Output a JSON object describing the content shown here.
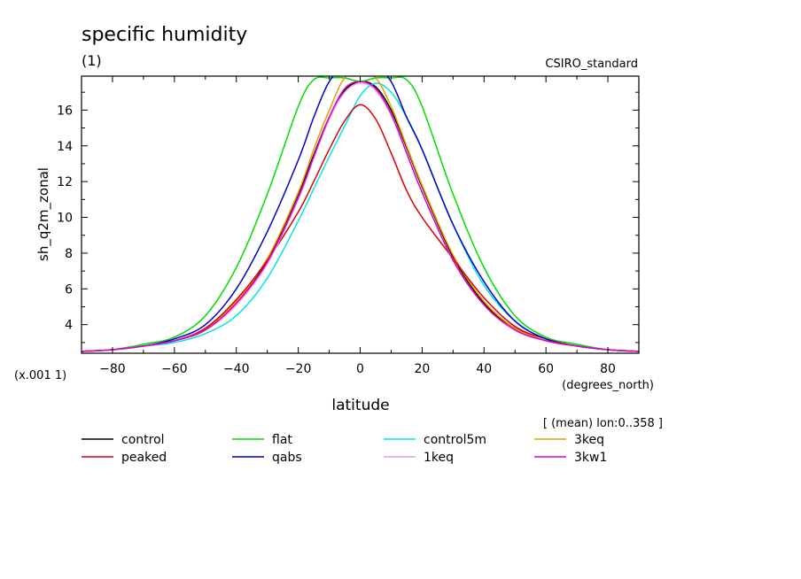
{
  "chart_data": {
    "type": "line",
    "title": "specific humidity",
    "subtitle": "(1)",
    "dataset_label": "CSIRO_standard",
    "xlabel": "latitude",
    "x_units": "(degrees_north)",
    "ylabel": "sh_q2m_zonal",
    "y_scale_note": "(x.001 1)",
    "averaging_note": "[ (mean) lon:0..358 ]",
    "xlim": [
      -90,
      90
    ],
    "ylim": [
      2.4,
      17.9
    ],
    "x_ticks": [
      -80,
      -60,
      -40,
      -20,
      0,
      20,
      40,
      60,
      80
    ],
    "y_ticks": [
      4,
      6,
      8,
      10,
      12,
      14,
      16
    ],
    "x_tick_labels": [
      "−80",
      "−60",
      "−40",
      "−20",
      "0",
      "20",
      "40",
      "60",
      "80"
    ],
    "y_tick_labels": [
      "4",
      "6",
      "8",
      "10",
      "12",
      "14",
      "16"
    ],
    "x": [
      -90,
      -80,
      -70,
      -60,
      -50,
      -40,
      -30,
      -20,
      -15,
      -10,
      -5,
      0,
      5,
      10,
      15,
      20,
      30,
      40,
      50,
      60,
      70,
      80,
      90
    ],
    "series": [
      {
        "name": "control",
        "color": "#000000",
        "values": [
          2.5,
          2.6,
          2.8,
          3.1,
          3.7,
          5.2,
          7.6,
          11.3,
          13.5,
          15.6,
          17.1,
          17.6,
          17.3,
          16.0,
          13.9,
          11.7,
          7.8,
          5.2,
          3.8,
          3.1,
          2.8,
          2.6,
          2.5
        ]
      },
      {
        "name": "flat",
        "color": "#00dd00",
        "values": [
          2.5,
          2.6,
          2.9,
          3.3,
          4.5,
          7.2,
          11.3,
          16.2,
          17.7,
          17.8,
          17.8,
          17.6,
          17.8,
          17.8,
          17.7,
          16.2,
          11.3,
          7.2,
          4.5,
          3.3,
          2.9,
          2.6,
          2.5
        ]
      },
      {
        "name": "control5m",
        "color": "#00e5e5",
        "values": [
          2.5,
          2.6,
          2.8,
          3.0,
          3.5,
          4.5,
          6.6,
          9.8,
          11.6,
          13.4,
          15.1,
          16.8,
          17.5,
          17.0,
          15.6,
          13.8,
          9.6,
          6.2,
          4.2,
          3.2,
          2.8,
          2.6,
          2.5
        ]
      },
      {
        "name": "3keq",
        "color": "#e5a000",
        "values": [
          2.5,
          2.6,
          2.8,
          3.1,
          3.8,
          5.3,
          7.7,
          11.4,
          13.8,
          16.0,
          17.8,
          18.0,
          17.8,
          16.2,
          14.0,
          11.8,
          7.9,
          5.3,
          3.8,
          3.1,
          2.8,
          2.6,
          2.5
        ]
      },
      {
        "name": "peaked",
        "color": "#dd0000",
        "values": [
          2.5,
          2.6,
          2.8,
          3.1,
          3.8,
          5.4,
          7.6,
          10.3,
          12.0,
          13.8,
          15.4,
          16.3,
          15.5,
          13.6,
          11.5,
          10.0,
          7.7,
          5.5,
          3.9,
          3.2,
          2.8,
          2.6,
          2.5
        ]
      },
      {
        "name": "qabs",
        "color": "#0000cc",
        "values": [
          2.5,
          2.6,
          2.8,
          3.2,
          4.0,
          6.0,
          9.2,
          13.2,
          15.6,
          17.6,
          18.4,
          18.5,
          18.4,
          17.6,
          15.6,
          13.8,
          9.6,
          6.4,
          4.2,
          3.2,
          2.8,
          2.6,
          2.5
        ]
      },
      {
        "name": "1keq",
        "color": "#e8a0e8",
        "values": [
          2.5,
          2.6,
          2.8,
          3.1,
          3.7,
          5.1,
          7.4,
          11.0,
          13.3,
          15.5,
          17.0,
          17.5,
          17.1,
          15.7,
          13.6,
          11.4,
          7.6,
          5.1,
          3.7,
          3.1,
          2.8,
          2.6,
          2.5
        ]
      },
      {
        "name": "3kw1",
        "color": "#e000c0",
        "values": [
          2.5,
          2.6,
          2.8,
          3.1,
          3.7,
          5.2,
          7.5,
          11.1,
          13.4,
          15.6,
          17.2,
          17.6,
          17.2,
          15.8,
          13.6,
          11.4,
          7.6,
          5.1,
          3.7,
          3.1,
          2.8,
          2.6,
          2.5
        ]
      }
    ],
    "grid": false,
    "legend_position": "bottom"
  }
}
